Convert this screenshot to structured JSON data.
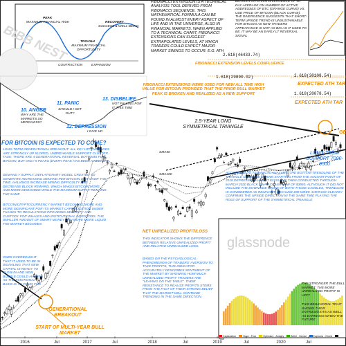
{
  "colors": {
    "orange": "#f08c00",
    "blue": "#1e6fd9",
    "up": "#2a2a2a",
    "down": "#111111",
    "sma": "#888888",
    "bg": "#ffffff"
  },
  "texts": {
    "fib_intro": "FIBONACCI EXTENSION IS A TECHNICAL ANALYSIS TOOL DERIVED FROM FIBONACCI SEQUENCE. THIS MATHEMATICAL FORMULA CAN BE FOUND IN ALMOST EVERY ASPECT OF LIFE AND IN THE UNIVERSE, ALSO IN FINANCIAL MARKETS. WHEN APPLIED TO A TECHNICAL CHART, FIBONACCI EXTENSIONS CAN SUGGEST EXTRAPOLATED LEVELS, AT WHICH TRADERS COULD EXPECT MAJOR MARKET SWINGS TO OCCUR. E.G. ATH",
    "bear_div": "BEARISH ON-CHAIN DIVERGENCE OF 50-DAY AVERAGE ON NUMBER OF ACTIVE ADDRESSES OF BTC (ORANGE CURVE) VS. USD PRICE OF BITCOIN (BLACK CURVE). THE DIVERGENCE SUGGESTS THAT SHORT-TERM UPSIDE TREND IS UNSUSTAINABLE FOR BITCOIN AS NEW TRADERS APPEARANCE IS NOT AS BIG AS IT USED TO BE. IT MAY BE AN EARLY LT REVERSAL SIGNAL",
    "fib_level_1": "2.618(46433.74)",
    "fib_confluence": "FIBONACCI EXTENSION LEVELS CONFLUENCE",
    "fib_level_2": "1.618(29890.02)",
    "fib_used": "FIBONACCI EXTENSIONS WERE USED FOR NEW ALL TIME HIGH VALUE FOR BITCOIN PROVIDED THAT THE PRIOR BULL MARKET PEAK IS BROKEN AND REALIZED AS A NEW SUPPORT",
    "fib_level_3": "2.618(30108.54)",
    "expected_ath_1": "EXPECTED ATH TAR",
    "fib_level_4": "1.618(20078.54)",
    "expected_ath_2": "EXPECTED ATH TAR",
    "triangle": "2.5-YEAR LONG SYMMETRICAL TRIANGLE",
    "question_header": "FOR BITCOIN IS EXPECTED TO COME?",
    "lt_sentiment": "LONG-TERM GENERATIONAL BREAKOUT: ALL KEY HTF AVERAGES ARE STRONGLY UP SLOPED, UNBREAKABLE SUPPORT CLUSTER. TASK: THERE ARE 4 GENERATIONAL REVERSAL BOTTOMS FOR BITCOIN, BUT ONLY 5 PEAKS (EVERY PEAK HAS BEEN A NEW ATH",
    "demand": "DEMAND > SUPPLY: DEFLATIONARY MODEL CREATED TO GENERATE INCREASING DEMAND PER BITCOIN UNIT OVER THE TIME. HALVINGS INCREASE MINING DIFFICULTY AND DECREASE BLOCK REWARD, WHICH MAKES BITCOIN MORE AND MORE DEMANDED WHILE THE MAXIMUM SUPPLY REMAINS THE SAME",
    "crypto_market": "BITCOIN/CRYPTOCURRENCY MARKET BECOMING MORE AND MORE SIGNIFICANT FOR ITS MARKET CAPITALIZATION UNDER THANKS TO REGULATIONS PROVIDING SECURITY AND CUSTODY FOR WHALES AND INSTITUTIONAL INVESTORS. THE SMALLER AMOUNT OF SMART MONEY CAN MOVE MORE LIQUID THE MARKET BECOMES",
    "ones_overbought": "ONES OVERBOUGHT THAT IT USED TO BE IN SIGNALING THAT NEW CAPITAL IS READY TO FLOW IN AND NEW BUBBLE COULD HAPPEN AS THE EMOTIONAL BASIS IS TO FOMO FUD",
    "cohesion": "ACCORDING TO TECHNICAL ANALYSIS, THE BOTTOM TRENDLINE OF THE TRIANGLE COULD BE DRAWN STARTING FROM THE ANCHOR POINT OF 2018 DEPRESSION LOW AT $3110 AND THEN CONDUCTED THROUGH MARCH 2020 BLACK SWAN CRASH LOW OF $3850. ALTHOUGH IT DID NOT INCLUDE THE DOWNSIDE WICKS OF BOTH THOSE CANDLES, TRENDLINE IS CONSIDERED AS RELEVANT. BECAUSE 200-WEEK AVERAGE CLEARLY CONFIRMS THE UPSIDE DIRECTION IN THE SAME TIME PLAYING THE ROLE OF SUPPORT OF THE SYMMETRICAL TRIANGLE",
    "lt_support": "LONG-TERM SUPPORT 7000-9500",
    "nupl_header": "NET UNREALIZED PROFIT/LOSS",
    "nupl_desc": "THIS INDICATOR SHOWS THE DIFFERENCE BETWEEN RELATIVE UNREALIZED PROFIT AND RELATIVE UNREALIZED LOSS.",
    "nupl_more": "BASED ON THE PSYCHOLOGICAL PHENOMENON OF TRADERS' AVERSION TO TAKE PROFITS, THIS INDICATOR ACCURATELY DESCRIBES SENTIMENT OF THE MARKET BY SHOWING HOW MUCH UNREALIZED PROFIT TRADERS ARE \"LEAVING ON THE TABLE\". THEIR RESISTANCE TO REALIZE PROFITS STEMS FROM THE FACT OF THEIR STRONG BELIEF THAT THE MARKET WILL CONTINUE TRENDING IN THE SAME DIRECTION.",
    "stronger": "THE STRONGER THE BULL MARKET, THE MORE UNREALIZED PROFIT IS LEFT",
    "behavioral": "THIS BEHAVIORAL TRAIT SHOWS THEIR ENTRIES/EXITS AS WELL AS EARNINGS WHEN THE FUTURE",
    "gen_breakout": "GENERATIONAL BREAKOUT",
    "multi_year": "START OF MULTI-YEAR BULL MARKET",
    "sma_labels": [
      "SMA50",
      "SMA100",
      "SMA200"
    ],
    "gen_label": "GE"
  },
  "inset": {
    "peak": "PEAK",
    "peak_sub": "MAXIMUM FINANCIAL RISK",
    "recovery": "RECOVERY",
    "recovery_sub": "SUCCESS & WELL-BEING",
    "trough": "TROUGH",
    "trough_sub": "MAXIMUM FINANCIAL OPPORTUNITY",
    "contraction": "CONTRACTION",
    "expansion": "EXPANSION",
    "stages": [
      {
        "n": "10. ANGER",
        "t": "WHY ARE THE MARKETS SO MERCILESS?"
      },
      {
        "n": "11. PANIC",
        "t": "SHOULD I GET OUT?"
      },
      {
        "n": "12. DEPRESSION",
        "t": "I GIVE UP."
      },
      {
        "n": "13. DISBELIEF",
        "t": "NOT FALLING FOR IT THIS TIME"
      }
    ]
  },
  "watermark": "glassnode",
  "logo_text": "BIBB NEST",
  "chart_data": {
    "type": "line",
    "title": "",
    "xlabel": "",
    "ylabel": "",
    "x_ticks": [
      "2016",
      "Jul",
      "2017",
      "Jul",
      "2018",
      "Jul",
      "2019",
      "Jul",
      "2020",
      "Jul"
    ],
    "series": [
      {
        "name": "",
        "values": [
          430,
          620,
          900,
          1050,
          2500,
          4000,
          13800,
          9000,
          7500,
          6500,
          6300,
          3500,
          3700,
          4200,
          11000,
          9500,
          7300,
          7100,
          5000,
          9000,
          9500,
          11500,
          13500
        ]
      },
      {
        "name": "SMA50",
        "values": [
          400,
          550,
          780,
          950,
          2000,
          3200,
          9500,
          9500,
          8000,
          7000,
          6500,
          5000,
          4200,
          5000,
          8500,
          9200,
          8500,
          8000,
          7300,
          8200,
          9300,
          10800,
          12500
        ]
      },
      {
        "name": "SMA100",
        "values": [
          380,
          500,
          680,
          860,
          1700,
          2600,
          7500,
          9000,
          8600,
          7600,
          7000,
          5800,
          5000,
          5200,
          7200,
          8500,
          8700,
          8400,
          7900,
          8200,
          9000,
          10000,
          11500
        ]
      },
      {
        "name": "SMA200",
        "values": [
          350,
          420,
          560,
          720,
          1200,
          1800,
          4500,
          6800,
          7500,
          7200,
          6900,
          6300,
          5800,
          5600,
          6200,
          7200,
          7800,
          8000,
          7900,
          8000,
          8500,
          9200,
          10000
        ]
      }
    ],
    "ylim": [
      300,
      50000
    ],
    "yscale": "log",
    "fib_levels": [
      {
        "label": "1.618(20078.54)",
        "value": 20078.54
      },
      {
        "label": "2.618(30108.54)",
        "value": 30108.54
      },
      {
        "label": "1.618(29890.02)",
        "value": 29890.02
      },
      {
        "label": "2.618(46433.74)",
        "value": 46433.74
      }
    ],
    "nupl_legend": [
      "Capitulation",
      "Hope - Fear",
      "Optimism - Anxiety",
      "Belief - Denial",
      "Euphoria - Greed",
      "Price"
    ],
    "nupl_colors": [
      "#e02020",
      "#f08c00",
      "#e6d200",
      "#38b000",
      "#1e6fd9",
      "#111111"
    ]
  }
}
